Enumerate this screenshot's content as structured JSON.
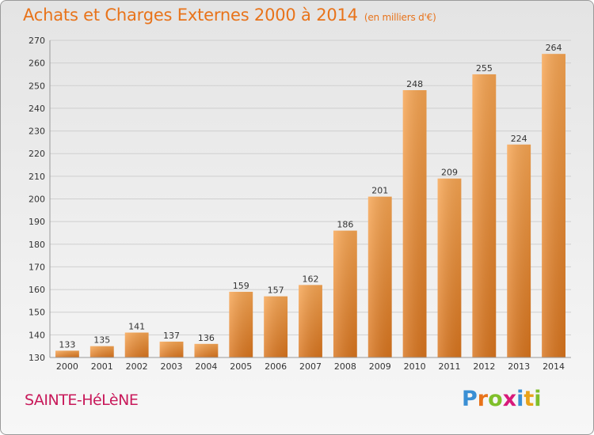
{
  "header": {
    "title": "Achats et Charges Externes 2000 à 2014",
    "subtitle": "(en milliers d'€)"
  },
  "footer": {
    "commune": "SAINTE-HéLèNE",
    "brand": "Proxiti"
  },
  "colors": {
    "bar_light": "#f7a552",
    "bar_dark": "#d9751e",
    "title": "#e8731a",
    "commune": "#c8195a"
  },
  "chart_data": {
    "type": "bar",
    "title": "Achats et Charges Externes 2000 à 2014",
    "subtitle": "(en milliers d'€)",
    "xlabel": "",
    "ylabel": "",
    "categories": [
      "2000",
      "2001",
      "2002",
      "2003",
      "2004",
      "2005",
      "2006",
      "2007",
      "2008",
      "2009",
      "2010",
      "2011",
      "2012",
      "2013",
      "2014"
    ],
    "values": [
      133,
      135,
      141,
      137,
      136,
      159,
      157,
      162,
      186,
      201,
      248,
      209,
      255,
      224,
      264
    ],
    "ylim": [
      130,
      270
    ],
    "yticks": [
      130,
      140,
      150,
      160,
      170,
      180,
      190,
      200,
      210,
      220,
      230,
      240,
      250,
      260,
      270
    ],
    "grid": true,
    "legend": "none"
  }
}
